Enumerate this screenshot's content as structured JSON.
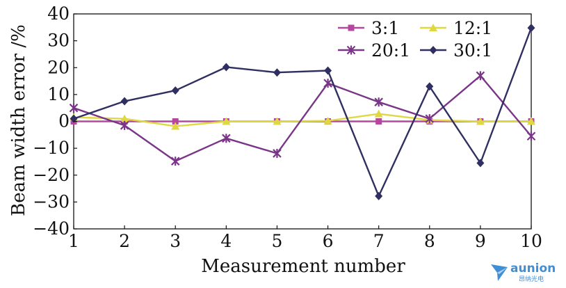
{
  "chart_data": {
    "type": "line",
    "xlabel": "Measurement number",
    "ylabel": "Beam width error /%",
    "xlim": [
      1,
      10
    ],
    "ylim": [
      -40,
      40
    ],
    "x_ticks": [
      1,
      2,
      3,
      4,
      5,
      6,
      7,
      8,
      9,
      10
    ],
    "y_ticks": [
      40,
      30,
      20,
      10,
      0,
      -10,
      -20,
      -30,
      -40
    ],
    "y_tick_labels": [
      "40",
      "30",
      "20",
      "10",
      "0",
      "−10",
      "−20",
      "−30",
      "−40"
    ],
    "grid": false,
    "legend_position": "top-right",
    "x": [
      1,
      2,
      3,
      4,
      5,
      6,
      7,
      8,
      9,
      10
    ],
    "series": [
      {
        "name": "3:1",
        "color": "#b4489f",
        "marker": "square",
        "values": [
          0,
          0,
          0,
          0,
          0,
          0,
          0,
          0,
          0,
          0
        ]
      },
      {
        "name": "12:1",
        "color": "#e0d840",
        "marker": "triangle",
        "values": [
          1.5,
          1,
          -1.8,
          0,
          0,
          0.2,
          2.8,
          0.5,
          0,
          0
        ]
      },
      {
        "name": "20:1",
        "color": "#7a3488",
        "marker": "asterisk",
        "values": [
          5,
          -1.5,
          -14.8,
          -6.3,
          -11.9,
          14.2,
          7.2,
          1,
          17,
          -5.5
        ]
      },
      {
        "name": "30:1",
        "color": "#2f2f62",
        "marker": "diamond",
        "values": [
          1,
          7.5,
          11.5,
          20.2,
          18.2,
          18.9,
          -27.8,
          13,
          -15.5,
          34.8
        ]
      }
    ]
  },
  "watermark": {
    "text": "aunion",
    "subtext": "昂纳光电",
    "color": "#3f8fd6"
  }
}
